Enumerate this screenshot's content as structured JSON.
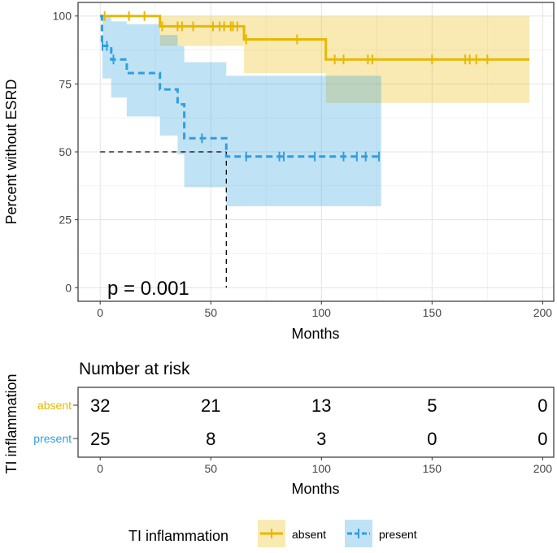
{
  "chart_data": [
    {
      "type": "line",
      "subtype": "kaplan-meier",
      "title": "",
      "xlabel": "Months",
      "ylabel": "Percent without ESRD",
      "xlim": [
        -10,
        205
      ],
      "ylim": [
        -5,
        105
      ],
      "x_ticks": [
        0,
        50,
        100,
        150,
        200
      ],
      "x_tick_labels": [
        "0",
        "50",
        "100",
        "150",
        "200"
      ],
      "y_ticks": [
        0,
        25,
        50,
        75,
        100
      ],
      "y_tick_labels": [
        "0",
        "25",
        "50",
        "75",
        "100"
      ],
      "grid": true,
      "annotation": "p = 0.001",
      "median_reference": {
        "x": 57,
        "y": 50
      },
      "series": [
        {
          "name": "absent",
          "color": "#E7B800",
          "linestyle": "solid",
          "steps": [
            [
              0,
              100
            ],
            [
              27,
              100
            ],
            [
              27,
              96.2
            ],
            [
              65,
              96.2
            ],
            [
              65,
              91.4
            ],
            [
              102,
              91.4
            ],
            [
              102,
              84
            ],
            [
              194,
              84
            ]
          ],
          "ci_band": [
            {
              "x0": 0,
              "x1": 27,
              "lower": 100,
              "upper": 100
            },
            {
              "x0": 27,
              "x1": 65,
              "lower": 89,
              "upper": 100
            },
            {
              "x0": 65,
              "x1": 102,
              "lower": 79,
              "upper": 100
            },
            {
              "x0": 102,
              "x1": 194,
              "lower": 68,
              "upper": 100
            }
          ],
          "censor_times": [
            2,
            13,
            20,
            28,
            35,
            37,
            42,
            51,
            54,
            56,
            59,
            60,
            62,
            66,
            89,
            106,
            110,
            121,
            123,
            150,
            165,
            167,
            170,
            175
          ]
        },
        {
          "name": "present",
          "color": "#2E9FDF",
          "linestyle": "dashed",
          "steps": [
            [
              0,
              100
            ],
            [
              0.8,
              100
            ],
            [
              0.8,
              89
            ],
            [
              5,
              89
            ],
            [
              5,
              84
            ],
            [
              12,
              84
            ],
            [
              12,
              79
            ],
            [
              27,
              79
            ],
            [
              27,
              73
            ],
            [
              35,
              73
            ],
            [
              35,
              67.5
            ],
            [
              38,
              67.5
            ],
            [
              38,
              55
            ],
            [
              57,
              55
            ],
            [
              57,
              48.3
            ],
            [
              127,
              48.3
            ]
          ],
          "ci_band": [
            {
              "x0": 0,
              "x1": 1,
              "lower": 100,
              "upper": 100
            },
            {
              "x0": 1,
              "x1": 5,
              "lower": 77,
              "upper": 100
            },
            {
              "x0": 5,
              "x1": 12,
              "lower": 70,
              "upper": 98
            },
            {
              "x0": 12,
              "x1": 27,
              "lower": 63,
              "upper": 97
            },
            {
              "x0": 27,
              "x1": 35,
              "lower": 56,
              "upper": 93
            },
            {
              "x0": 35,
              "x1": 38,
              "lower": 49,
              "upper": 89
            },
            {
              "x0": 38,
              "x1": 57,
              "lower": 37,
              "upper": 83
            },
            {
              "x0": 57,
              "x1": 127,
              "lower": 30,
              "upper": 78
            }
          ],
          "censor_times": [
            1,
            3,
            6,
            46,
            66,
            81,
            83,
            97,
            110,
            116,
            120,
            126
          ]
        }
      ]
    },
    {
      "type": "table",
      "title": "Number at risk",
      "xlabel": "Months",
      "ylabel": "TI inflammation",
      "time_points": [
        0,
        50,
        100,
        150,
        200
      ],
      "x_tick_labels": [
        "0",
        "50",
        "100",
        "150",
        "200"
      ],
      "rows": [
        {
          "name": "absent",
          "color": "#E7B800",
          "counts": [
            32,
            21,
            13,
            5,
            0
          ]
        },
        {
          "name": "present",
          "color": "#2E9FDF",
          "counts": [
            25,
            8,
            3,
            0,
            0
          ]
        }
      ]
    }
  ],
  "legend": {
    "title": "TI inflammation",
    "items": [
      {
        "label": "absent",
        "color": "#E7B800"
      },
      {
        "label": "present",
        "color": "#2E9FDF"
      }
    ]
  }
}
